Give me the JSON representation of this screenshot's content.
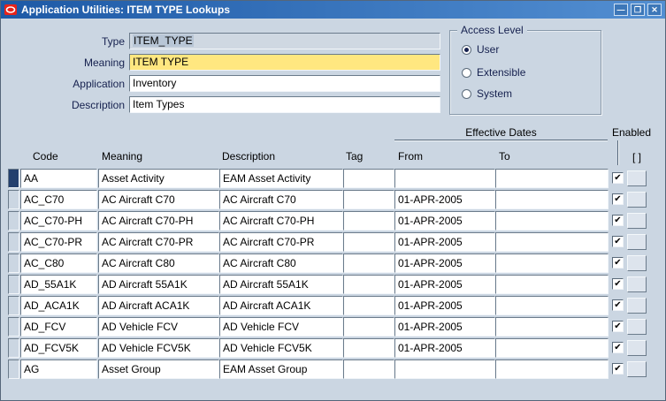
{
  "window": {
    "title": "Application Utilities: ITEM TYPE Lookups",
    "controls": {
      "minimize": "—",
      "maximize": "❐",
      "close": "✕"
    }
  },
  "form": {
    "fields": [
      {
        "label": "Type",
        "value": "ITEM_TYPE"
      },
      {
        "label": "Meaning",
        "value": "ITEM TYPE"
      },
      {
        "label": "Application",
        "value": "Inventory"
      },
      {
        "label": "Description",
        "value": "Item Types"
      }
    ],
    "access_level": {
      "label": "Access Level",
      "options": [
        {
          "label": "User",
          "selected": true
        },
        {
          "label": "Extensible",
          "selected": false
        },
        {
          "label": "System",
          "selected": false
        }
      ]
    }
  },
  "table": {
    "group_headers": {
      "effective_dates": "Effective Dates",
      "enabled": "Enabled",
      "flex": "[ ]"
    },
    "columns": [
      "Code",
      "Meaning",
      "Description",
      "Tag",
      "From",
      "To"
    ],
    "selected_row_index": 0,
    "rows": [
      {
        "code": "AA",
        "meaning": "Asset Activity",
        "description": "EAM Asset Activity",
        "tag": "",
        "from": "",
        "to": "",
        "enabled": true
      },
      {
        "code": "AC_C70",
        "meaning": "AC Aircraft C70",
        "description": "AC Aircraft C70",
        "tag": "",
        "from": "01-APR-2005",
        "to": "",
        "enabled": true
      },
      {
        "code": "AC_C70-PH",
        "meaning": "AC Aircraft C70-PH",
        "description": "AC Aircraft C70-PH",
        "tag": "",
        "from": "01-APR-2005",
        "to": "",
        "enabled": true
      },
      {
        "code": "AC_C70-PR",
        "meaning": "AC Aircraft C70-PR",
        "description": "AC Aircraft C70-PR",
        "tag": "",
        "from": "01-APR-2005",
        "to": "",
        "enabled": true
      },
      {
        "code": "AC_C80",
        "meaning": "AC Aircraft C80",
        "description": "AC Aircraft C80",
        "tag": "",
        "from": "01-APR-2005",
        "to": "",
        "enabled": true
      },
      {
        "code": "AD_55A1K",
        "meaning": "AD Aircraft 55A1K",
        "description": "AD Aircraft 55A1K",
        "tag": "",
        "from": "01-APR-2005",
        "to": "",
        "enabled": true
      },
      {
        "code": "AD_ACA1K",
        "meaning": "AD Aircraft ACA1K",
        "description": "AD Aircraft ACA1K",
        "tag": "",
        "from": "01-APR-2005",
        "to": "",
        "enabled": true
      },
      {
        "code": "AD_FCV",
        "meaning": "AD Vehicle FCV",
        "description": "AD Vehicle FCV",
        "tag": "",
        "from": "01-APR-2005",
        "to": "",
        "enabled": true
      },
      {
        "code": "AD_FCV5K",
        "meaning": "AD Vehicle FCV5K",
        "description": "AD Vehicle FCV5K",
        "tag": "",
        "from": "01-APR-2005",
        "to": "",
        "enabled": true
      },
      {
        "code": "AG",
        "meaning": "Asset Group",
        "description": "EAM Asset Group",
        "tag": "",
        "from": "",
        "to": "",
        "enabled": true
      }
    ]
  },
  "icons": {
    "check_glyph": "✔"
  },
  "colors": {
    "canvas": "#cbd6e2",
    "titlebar_start": "#1d59a6",
    "titlebar_end": "#538fd2",
    "required_field": "#ffe780",
    "selection": "#b8c6d6",
    "current_record": "#24406e",
    "oracle_red": "#e8231a"
  }
}
